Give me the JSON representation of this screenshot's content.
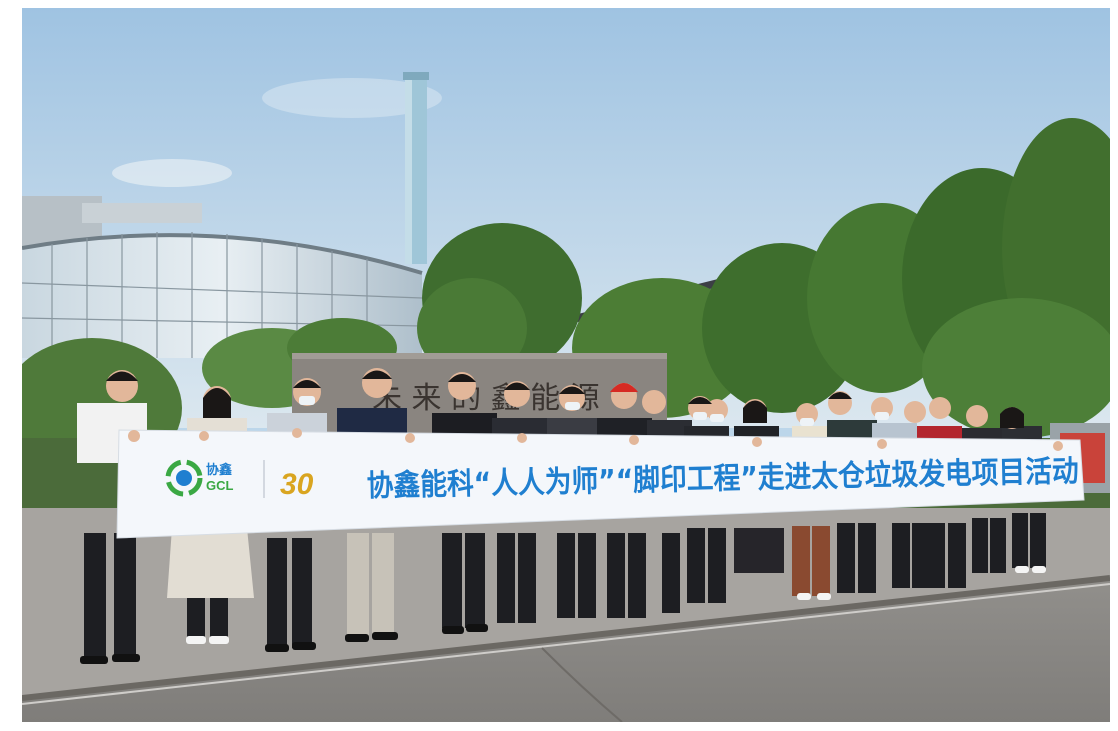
{
  "photo": {
    "description_tags": [
      "group-photo",
      "banner",
      "outdoor",
      "power-plant"
    ],
    "banner": {
      "logo_cn": "协鑫",
      "logo_en": "GCL",
      "anniversary_mark": "30",
      "slogan": "协鑫能科“人人为师”“脚印工程”走进太仓垃圾发电项目活动"
    },
    "wall_sign_partial": "未 来 的 鑫 能 源",
    "colors": {
      "sky_top": "#a9cbe6",
      "sky_bottom": "#d8e6ef",
      "banner_bg": "#f4f7fb",
      "banner_text": "#1f7fd0",
      "logo_green": "#3aa843",
      "logo_blue": "#1f7fd0",
      "anniversary_gold": "#d9a520",
      "tree_green": "#3d6e2c",
      "pavement": "#8f8c88"
    }
  }
}
